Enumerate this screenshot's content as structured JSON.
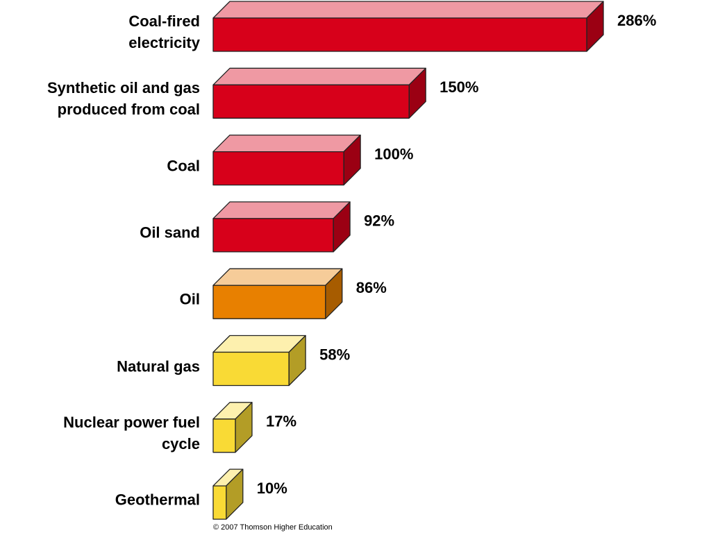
{
  "chart_data": {
    "type": "bar3d",
    "categories": [
      "Coal-fired\nelectricity",
      "Synthetic oil and gas\nproduced from coal",
      "Coal",
      "Oil sand",
      "Oil",
      "Natural gas",
      "Nuclear power fuel\ncycle",
      "Geothermal"
    ],
    "values": [
      286,
      150,
      100,
      92,
      86,
      58,
      17,
      10
    ],
    "value_labels": [
      "286%",
      "150%",
      "100%",
      "92%",
      "86%",
      "58%",
      "17%",
      "10%"
    ],
    "colors": [
      "#d7001a",
      "#d7001a",
      "#d7001a",
      "#d7001a",
      "#e88000",
      "#f9da35",
      "#f9da35",
      "#f9da35"
    ],
    "credit": "© 2007 Thomson Higher Education"
  }
}
